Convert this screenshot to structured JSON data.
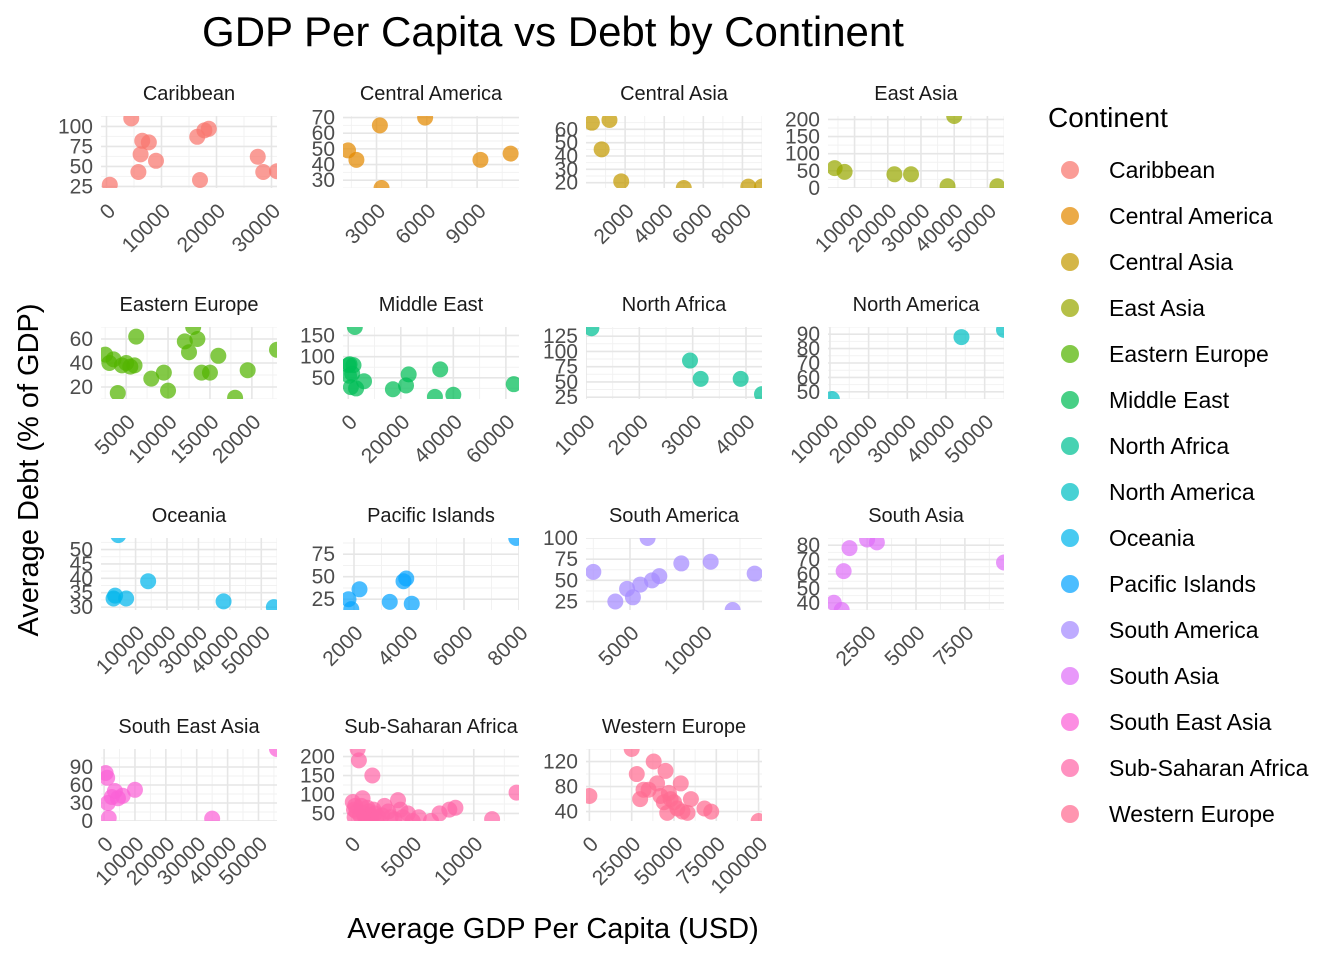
{
  "chart_data": {
    "type": "scatter",
    "title": "GDP Per Capita vs Debt by Continent",
    "xlabel": "Average GDP Per Capita (USD)",
    "ylabel": "Average Debt (% of GDP)",
    "legend": {
      "title": "Continent",
      "position": "right"
    },
    "grid": true,
    "panels": [
      {
        "name": "Caribbean",
        "color": "#F8766D",
        "xlim": [
          -1000,
          31000
        ],
        "xticks": [
          0,
          10000,
          20000,
          30000
        ],
        "ylim": [
          23,
          113
        ],
        "yticks": [
          25,
          50,
          75,
          100
        ],
        "points": [
          [
            4500,
            110
          ],
          [
            6500,
            82
          ],
          [
            7700,
            80
          ],
          [
            6200,
            65
          ],
          [
            9000,
            57
          ],
          [
            5800,
            43
          ],
          [
            16500,
            87
          ],
          [
            17800,
            95
          ],
          [
            18600,
            97
          ],
          [
            27500,
            62
          ],
          [
            28500,
            43
          ],
          [
            31000,
            44
          ],
          [
            17000,
            33
          ],
          [
            600,
            27
          ]
        ]
      },
      {
        "name": "Central America",
        "color": "#E38900",
        "xlim": [
          1000,
          11500
        ],
        "xticks": [
          3000,
          6000,
          9000
        ],
        "ylim": [
          25,
          71
        ],
        "yticks": [
          30,
          40,
          50,
          60,
          70
        ],
        "points": [
          [
            1300,
            49
          ],
          [
            1800,
            43
          ],
          [
            3200,
            65
          ],
          [
            3300,
            25
          ],
          [
            5900,
            70
          ],
          [
            9200,
            43
          ],
          [
            11000,
            47
          ]
        ]
      },
      {
        "name": "Central Asia",
        "color": "#C49A00",
        "xlim": [
          0,
          9000
        ],
        "xticks": [
          2000,
          4000,
          6000,
          8000
        ],
        "ylim": [
          16,
          70
        ],
        "yticks": [
          20,
          30,
          40,
          50,
          60
        ],
        "points": [
          [
            300,
            65
          ],
          [
            1200,
            67
          ],
          [
            800,
            45
          ],
          [
            1800,
            21
          ],
          [
            5000,
            16
          ],
          [
            8300,
            17
          ],
          [
            9000,
            17
          ]
        ]
      },
      {
        "name": "East Asia",
        "color": "#99A800",
        "xlim": [
          2000,
          55000
        ],
        "xticks": [
          10000,
          20000,
          30000,
          40000,
          50000
        ],
        "ylim": [
          0,
          210
        ],
        "yticks": [
          0,
          50,
          100,
          150,
          200
        ],
        "points": [
          [
            4000,
            58
          ],
          [
            7000,
            47
          ],
          [
            22000,
            40
          ],
          [
            27000,
            40
          ],
          [
            38000,
            5
          ],
          [
            40000,
            210
          ],
          [
            53000,
            5
          ]
        ]
      },
      {
        "name": "Eastern Europe",
        "color": "#53B400",
        "xlim": [
          2000,
          23000
        ],
        "xticks": [
          5000,
          10000,
          15000,
          20000
        ],
        "ylim": [
          10,
          70
        ],
        "yticks": [
          20,
          40,
          60
        ],
        "points": [
          [
            2500,
            47
          ],
          [
            3000,
            40
          ],
          [
            3500,
            43
          ],
          [
            4000,
            15
          ],
          [
            4500,
            38
          ],
          [
            5000,
            40
          ],
          [
            5500,
            37
          ],
          [
            6000,
            38
          ],
          [
            6200,
            62
          ],
          [
            8000,
            27
          ],
          [
            9500,
            32
          ],
          [
            10000,
            17
          ],
          [
            12000,
            58
          ],
          [
            12500,
            49
          ],
          [
            13000,
            70
          ],
          [
            13500,
            60
          ],
          [
            14000,
            32
          ],
          [
            15000,
            32
          ],
          [
            16000,
            46
          ],
          [
            18000,
            11
          ],
          [
            19500,
            34
          ],
          [
            23000,
            51
          ]
        ]
      },
      {
        "name": "Middle East",
        "color": "#00BC56",
        "xlim": [
          -2000,
          65000
        ],
        "xticks": [
          0,
          20000,
          40000,
          60000
        ],
        "ylim": [
          0,
          170
        ],
        "yticks": [
          50,
          100,
          150
        ],
        "points": [
          [
            100,
            80
          ],
          [
            300,
            55
          ],
          [
            500,
            82
          ],
          [
            1000,
            28
          ],
          [
            1500,
            60
          ],
          [
            2000,
            80
          ],
          [
            2500,
            170
          ],
          [
            3000,
            25
          ],
          [
            6000,
            42
          ],
          [
            17000,
            23
          ],
          [
            22000,
            32
          ],
          [
            23000,
            58
          ],
          [
            33000,
            5
          ],
          [
            35000,
            70
          ],
          [
            40000,
            10
          ],
          [
            63000,
            35
          ]
        ]
      },
      {
        "name": "North Africa",
        "color": "#00C094",
        "xlim": [
          1000,
          4300
        ],
        "xticks": [
          1000,
          2000,
          3000,
          4000
        ],
        "ylim": [
          22,
          140
        ],
        "yticks": [
          25,
          50,
          75,
          100,
          125
        ],
        "points": [
          [
            1100,
            138
          ],
          [
            2950,
            85
          ],
          [
            3150,
            55
          ],
          [
            3900,
            55
          ],
          [
            4300,
            30
          ]
        ]
      },
      {
        "name": "North America",
        "color": "#00BFC4",
        "xlim": [
          9500,
          55000
        ],
        "xticks": [
          10000,
          20000,
          30000,
          40000,
          50000
        ],
        "ylim": [
          45,
          95
        ],
        "yticks": [
          50,
          60,
          70,
          80,
          90
        ],
        "points": [
          [
            10500,
            45
          ],
          [
            44000,
            88
          ],
          [
            55000,
            93
          ]
        ]
      },
      {
        "name": "Oceania",
        "color": "#00B6EB",
        "xlim": [
          -1000,
          55000
        ],
        "xticks": [
          10000,
          20000,
          30000,
          40000,
          50000
        ],
        "ylim": [
          29,
          54
        ],
        "yticks": [
          30,
          35,
          40,
          45,
          50
        ],
        "points": [
          [
            3000,
            33
          ],
          [
            3500,
            34
          ],
          [
            4500,
            55
          ],
          [
            7000,
            33
          ],
          [
            14000,
            39
          ],
          [
            38000,
            32
          ],
          [
            54000,
            30
          ]
        ]
      },
      {
        "name": "Pacific Islands",
        "color": "#06A4FF",
        "xlim": [
          1600,
          8000
        ],
        "xticks": [
          2000,
          4000,
          6000,
          8000
        ],
        "ylim": [
          13,
          93
        ],
        "yticks": [
          25,
          50,
          75
        ],
        "points": [
          [
            1800,
            25
          ],
          [
            2200,
            36
          ],
          [
            1900,
            14
          ],
          [
            3300,
            22
          ],
          [
            3800,
            45
          ],
          [
            3900,
            48
          ],
          [
            4100,
            20
          ],
          [
            7900,
            93
          ]
        ]
      },
      {
        "name": "South America",
        "color": "#A58AFF",
        "xlim": [
          2000,
          14000
        ],
        "xticks": [
          5000,
          10000
        ],
        "ylim": [
          15,
          100
        ],
        "yticks": [
          25,
          50,
          75,
          100
        ],
        "points": [
          [
            2500,
            60
          ],
          [
            4000,
            25
          ],
          [
            4800,
            40
          ],
          [
            5200,
            30
          ],
          [
            5700,
            45
          ],
          [
            6200,
            100
          ],
          [
            6500,
            50
          ],
          [
            7000,
            55
          ],
          [
            8500,
            70
          ],
          [
            10500,
            72
          ],
          [
            12000,
            15
          ],
          [
            13500,
            58
          ]
        ]
      },
      {
        "name": "South Asia",
        "color": "#DF70F8",
        "xlim": [
          500,
          9500
        ],
        "xticks": [
          2500,
          5000,
          7500
        ],
        "ylim": [
          35,
          85
        ],
        "yticks": [
          40,
          50,
          60,
          70,
          80
        ],
        "points": [
          [
            800,
            40
          ],
          [
            1200,
            35
          ],
          [
            1300,
            62
          ],
          [
            1600,
            78
          ],
          [
            2500,
            84
          ],
          [
            3000,
            82
          ],
          [
            9500,
            68
          ]
        ]
      },
      {
        "name": "South East Asia",
        "color": "#FB61D7",
        "xlim": [
          -1000,
          56000
        ],
        "xticks": [
          0,
          10000,
          20000,
          30000,
          40000,
          50000
        ],
        "ylim": [
          0,
          120
        ],
        "yticks": [
          0,
          30,
          60,
          90
        ],
        "points": [
          [
            500,
            80
          ],
          [
            1000,
            72
          ],
          [
            1200,
            30
          ],
          [
            1500,
            5
          ],
          [
            2500,
            40
          ],
          [
            3500,
            50
          ],
          [
            4500,
            38
          ],
          [
            6000,
            42
          ],
          [
            10000,
            52
          ],
          [
            35000,
            4
          ],
          [
            56000,
            120
          ]
        ]
      },
      {
        "name": "Sub-Saharan Africa",
        "color": "#FF66A8",
        "xlim": [
          -700,
          13700
        ],
        "xticks": [
          0,
          5000,
          10000
        ],
        "ylim": [
          30,
          220
        ],
        "yticks": [
          50,
          100,
          150,
          200
        ],
        "points": [
          [
            100,
            80
          ],
          [
            200,
            60
          ],
          [
            250,
            40
          ],
          [
            300,
            70
          ],
          [
            400,
            55
          ],
          [
            500,
            220
          ],
          [
            600,
            190
          ],
          [
            700,
            45
          ],
          [
            800,
            70
          ],
          [
            900,
            90
          ],
          [
            1000,
            50
          ],
          [
            1100,
            40
          ],
          [
            1200,
            35
          ],
          [
            1300,
            65
          ],
          [
            1400,
            55
          ],
          [
            1500,
            45
          ],
          [
            1600,
            40
          ],
          [
            1700,
            150
          ],
          [
            1800,
            60
          ],
          [
            1900,
            50
          ],
          [
            2000,
            35
          ],
          [
            2200,
            40
          ],
          [
            2500,
            45
          ],
          [
            2700,
            70
          ],
          [
            3000,
            55
          ],
          [
            3200,
            40
          ],
          [
            3500,
            35
          ],
          [
            3800,
            85
          ],
          [
            4000,
            60
          ],
          [
            4200,
            40
          ],
          [
            4600,
            50
          ],
          [
            5000,
            30
          ],
          [
            5500,
            40
          ],
          [
            6500,
            30
          ],
          [
            7200,
            50
          ],
          [
            8000,
            60
          ],
          [
            8500,
            65
          ],
          [
            11500,
            35
          ],
          [
            13500,
            105
          ]
        ]
      },
      {
        "name": "Western Europe",
        "color": "#FF6C91",
        "xlim": [
          -2000,
          102000
        ],
        "xticks": [
          0,
          25000,
          50000,
          75000,
          100000
        ],
        "ylim": [
          25,
          140
        ],
        "yticks": [
          40,
          80,
          120
        ],
        "points": [
          [
            0,
            65
          ],
          [
            25000,
            140
          ],
          [
            28000,
            100
          ],
          [
            30000,
            60
          ],
          [
            32000,
            75
          ],
          [
            35000,
            75
          ],
          [
            38000,
            120
          ],
          [
            40000,
            85
          ],
          [
            42000,
            65
          ],
          [
            44000,
            55
          ],
          [
            45000,
            105
          ],
          [
            46000,
            38
          ],
          [
            47000,
            70
          ],
          [
            48000,
            60
          ],
          [
            50000,
            55
          ],
          [
            52000,
            45
          ],
          [
            54000,
            85
          ],
          [
            55000,
            40
          ],
          [
            58000,
            38
          ],
          [
            60000,
            60
          ],
          [
            68000,
            45
          ],
          [
            72000,
            40
          ],
          [
            100000,
            25
          ]
        ]
      }
    ]
  }
}
